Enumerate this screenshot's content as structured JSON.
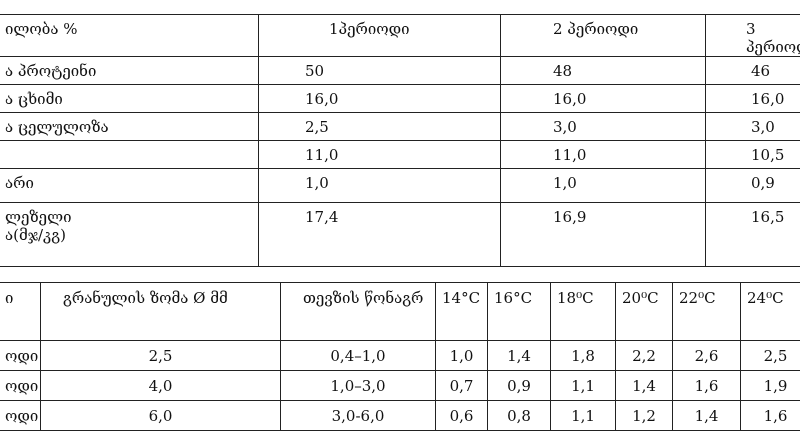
{
  "table1": {
    "header": [
      "ილობა %",
      "1პერიოდი",
      "2 პერიოდი",
      "3  პერიოდ"
    ],
    "rows": [
      [
        "ა პროტეინი",
        "50",
        "48",
        "46"
      ],
      [
        "ა ცხიმი",
        "16,0",
        "16,0",
        "16,0"
      ],
      [
        "ა ცელულოზა",
        "2,5",
        "3,0",
        "3,0"
      ],
      [
        null,
        "11,0",
        "11,0",
        "10,5"
      ],
      [
        "არი",
        "1,0",
        "1,0",
        "0,9"
      ],
      [
        "ლეზელი\nა(მჯ/კგ)",
        "17,4",
        "16,9",
        "16,5"
      ]
    ]
  },
  "table2": {
    "header": [
      "ი",
      "გრანულის ზომა  Ø  მმ",
      "თევზის წონაგრ",
      "14°C",
      "16°C",
      "18⁰C",
      "20⁰C",
      "22⁰C",
      "24⁰C"
    ],
    "rows": [
      [
        "ოდი",
        "2,5",
        "0,4–1,0",
        "1,0",
        "1,4",
        "1,8",
        "2,2",
        "2,6",
        "2,5"
      ],
      [
        "ოდი",
        "4,0",
        "1,0–3,0",
        "0,7",
        "0,9",
        "1,1",
        "1,4",
        "1,6",
        "1,9"
      ],
      [
        "ოდი",
        "6,0",
        "3,0-6,0",
        "0,6",
        "0,8",
        "1,1",
        "1,2",
        "1,4",
        "1,6"
      ]
    ]
  }
}
